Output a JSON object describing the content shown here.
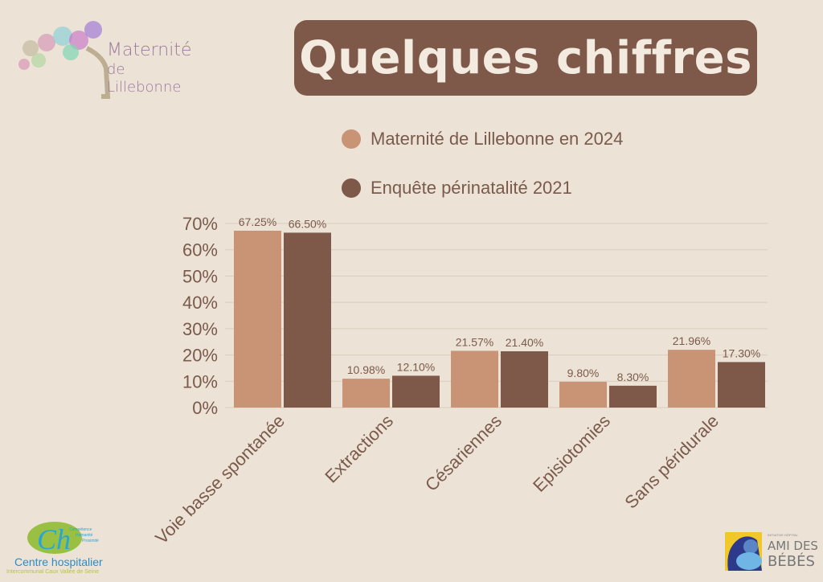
{
  "header": {
    "title": "Quelques chiffres"
  },
  "logos": {
    "maternite": {
      "line1": "Maternité",
      "line2": "de",
      "line3": "Lillebonne"
    },
    "hospital": {
      "tagline1": "Compétence",
      "tagline2": "Humanité",
      "tagline3": "Proximité",
      "name": "Centre hospitalier",
      "subname": "Intercommunal Caux Vallée de Seine"
    },
    "ami_bebes": {
      "small": "INITIATIVE HÔPITAL",
      "line1": "AMI DES",
      "line2": "BÉBÉS"
    }
  },
  "colors": {
    "series1": "#c99475",
    "series2": "#7e5848",
    "text": "#7a5a4c"
  },
  "chart_data": {
    "type": "bar",
    "title": "Quelques chiffres",
    "categories": [
      "Voie basse spontanée",
      "Extractions",
      "Césariennes",
      "Episiotomies",
      "Sans péridurale"
    ],
    "series": [
      {
        "name": "Maternité de Lillebonne en 2024",
        "values": [
          67.25,
          10.98,
          21.57,
          9.8,
          21.96
        ],
        "labels": [
          "67.25%",
          "10.98%",
          "21.57%",
          "9.80%",
          "21.96%"
        ]
      },
      {
        "name": "Enquête périnatalité 2021",
        "values": [
          66.5,
          12.1,
          21.4,
          8.3,
          17.3
        ],
        "labels": [
          "66.50%",
          "12.10%",
          "21.40%",
          "8.30%",
          "17.30%"
        ]
      }
    ],
    "ylim": [
      0,
      70
    ],
    "yticks": [
      "0%",
      "10%",
      "20%",
      "30%",
      "40%",
      "50%",
      "60%",
      "70%"
    ],
    "grid": true,
    "legend_position": "top"
  }
}
